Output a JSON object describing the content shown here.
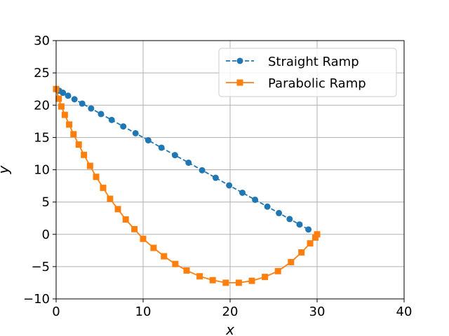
{
  "chart_data": {
    "type": "line",
    "title": "",
    "xlabel": "x",
    "ylabel": "y",
    "xlim": [
      0,
      40
    ],
    "ylim": [
      -10,
      30
    ],
    "xticks": [
      0,
      10,
      20,
      30,
      40
    ],
    "yticks": [
      -10,
      -5,
      0,
      5,
      10,
      15,
      20,
      25,
      30
    ],
    "grid": true,
    "legend_position": "upper-right",
    "series": [
      {
        "name": "Straight Ramp",
        "color": "#1f77b4",
        "line_style": "dashed",
        "marker": "circle",
        "x": [
          0.0,
          0.09,
          0.35,
          0.78,
          1.37,
          2.11,
          3.0,
          4.02,
          5.16,
          6.39,
          7.72,
          9.13,
          10.59,
          12.11,
          13.66,
          15.22,
          16.78,
          18.34,
          19.89,
          21.41,
          22.87,
          24.28,
          25.61,
          26.84,
          27.98,
          29.0
        ],
        "y": [
          22.5,
          22.43,
          22.24,
          21.92,
          21.47,
          20.92,
          20.25,
          19.49,
          18.63,
          17.71,
          16.71,
          15.65,
          14.56,
          13.42,
          12.26,
          11.09,
          9.92,
          8.75,
          7.58,
          6.44,
          5.35,
          4.29,
          3.29,
          2.37,
          1.52,
          0.75
        ]
      },
      {
        "name": "Parabolic Ramp",
        "color": "#ff7f0e",
        "line_style": "solid",
        "marker": "square",
        "x": [
          0.0,
          0.3,
          0.6,
          1.0,
          1.5,
          2.0,
          2.6,
          3.2,
          3.9,
          4.6,
          5.4,
          6.2,
          7.1,
          8.0,
          9.0,
          10.0,
          11.2,
          12.4,
          13.7,
          15.0,
          16.5,
          18.0,
          19.5,
          21.0,
          22.5,
          24.0,
          25.5,
          27.0,
          28.2,
          29.2,
          29.8,
          30.0
        ],
        "y": [
          22.5,
          21.0,
          19.8,
          18.5,
          17.0,
          15.5,
          13.9,
          12.3,
          10.6,
          8.9,
          7.2,
          5.5,
          3.9,
          2.3,
          0.8,
          -0.7,
          -2.1,
          -3.4,
          -4.6,
          -5.6,
          -6.5,
          -7.1,
          -7.5,
          -7.5,
          -7.2,
          -6.6,
          -5.7,
          -4.3,
          -2.8,
          -1.4,
          -0.5,
          0.0
        ]
      }
    ]
  }
}
